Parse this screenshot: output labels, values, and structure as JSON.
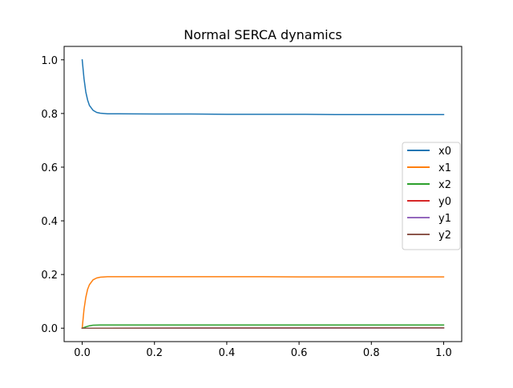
{
  "chart_data": {
    "type": "line",
    "title": "Normal SERCA dynamics",
    "xlabel": "",
    "ylabel": "",
    "xlim": [
      -0.05,
      1.05
    ],
    "ylim": [
      -0.05,
      1.05
    ],
    "xticks": [
      0.0,
      0.2,
      0.4,
      0.6,
      0.8,
      1.0
    ],
    "xtick_labels": [
      "0.0",
      "0.2",
      "0.4",
      "0.6",
      "0.8",
      "1.0"
    ],
    "yticks": [
      0.0,
      0.2,
      0.4,
      0.6,
      0.8,
      1.0
    ],
    "ytick_labels": [
      "0.0",
      "0.2",
      "0.4",
      "0.6",
      "0.8",
      "1.0"
    ],
    "grid": false,
    "legend_position": "center-right",
    "series": [
      {
        "name": "x0",
        "color": "#1f77b4",
        "x": [
          0.0,
          0.005,
          0.01,
          0.015,
          0.02,
          0.03,
          0.04,
          0.05,
          0.07,
          0.1,
          0.2,
          0.3,
          0.4,
          0.5,
          0.6,
          0.7,
          0.8,
          0.9,
          1.0
        ],
        "y": [
          1.0,
          0.93,
          0.88,
          0.85,
          0.83,
          0.812,
          0.804,
          0.801,
          0.799,
          0.799,
          0.798,
          0.798,
          0.797,
          0.797,
          0.797,
          0.796,
          0.796,
          0.796,
          0.796
        ]
      },
      {
        "name": "x1",
        "color": "#ff7f0e",
        "x": [
          0.0,
          0.005,
          0.01,
          0.015,
          0.02,
          0.03,
          0.04,
          0.05,
          0.07,
          0.1,
          0.2,
          0.3,
          0.4,
          0.5,
          0.6,
          0.7,
          0.8,
          0.9,
          1.0
        ],
        "y": [
          0.0,
          0.07,
          0.115,
          0.145,
          0.162,
          0.18,
          0.187,
          0.19,
          0.192,
          0.192,
          0.192,
          0.192,
          0.192,
          0.192,
          0.191,
          0.191,
          0.191,
          0.191,
          0.191
        ]
      },
      {
        "name": "x2",
        "color": "#2ca02c",
        "x": [
          0.0,
          0.01,
          0.02,
          0.03,
          0.05,
          0.1,
          0.5,
          1.0
        ],
        "y": [
          0.0,
          0.005,
          0.009,
          0.011,
          0.012,
          0.012,
          0.012,
          0.012
        ]
      },
      {
        "name": "y0",
        "color": "#d62728",
        "x": [
          0.0,
          0.5,
          1.0
        ],
        "y": [
          0.0,
          0.0005,
          0.001
        ]
      },
      {
        "name": "y1",
        "color": "#9467bd",
        "x": [
          0.0,
          0.5,
          1.0
        ],
        "y": [
          0.0,
          0.0003,
          0.0006
        ]
      },
      {
        "name": "y2",
        "color": "#8c564b",
        "x": [
          0.0,
          0.5,
          1.0
        ],
        "y": [
          0.0,
          0.0008,
          0.0015
        ]
      }
    ]
  }
}
